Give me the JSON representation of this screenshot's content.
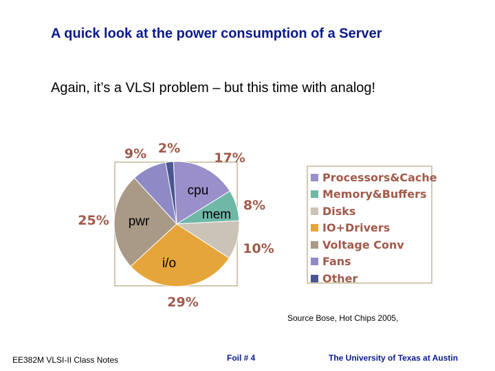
{
  "slide": {
    "title": "A quick look at the power consumption of a Server",
    "subtitle": "Again, it’s a VLSI problem – but this time with analog!",
    "source": "Source Bose, Hot Chips 2005,",
    "footer_left": "EE382M VLSI-II Class Notes",
    "footer_mid": "Foil # 4",
    "footer_right": "The University of Texas at Austin"
  },
  "chart_data": {
    "type": "pie",
    "series": [
      {
        "name": "Processors&Cache",
        "value": 17,
        "pct_label": "17%",
        "color": "#9a8fc8",
        "slice_label": "cpu"
      },
      {
        "name": "Memory&Buffers",
        "value": 8,
        "pct_label": "8%",
        "color": "#6fb8a8",
        "slice_label": "mem"
      },
      {
        "name": "Disks",
        "value": 10,
        "pct_label": "10%",
        "color": "#cbc3b6",
        "slice_label": ""
      },
      {
        "name": "IO+Drivers",
        "value": 29,
        "pct_label": "29%",
        "color": "#e6a53a",
        "slice_label": "i/o"
      },
      {
        "name": "Voltage Conv",
        "value": 25,
        "pct_label": "25%",
        "color": "#a89a86",
        "slice_label": "pwr"
      },
      {
        "name": "Fans",
        "value": 9,
        "pct_label": "9%",
        "color": "#8e8ac6",
        "slice_label": ""
      },
      {
        "name": "Other",
        "value": 2,
        "pct_label": "2%",
        "color": "#4a5690",
        "slice_label": ""
      }
    ],
    "legend": "right"
  }
}
